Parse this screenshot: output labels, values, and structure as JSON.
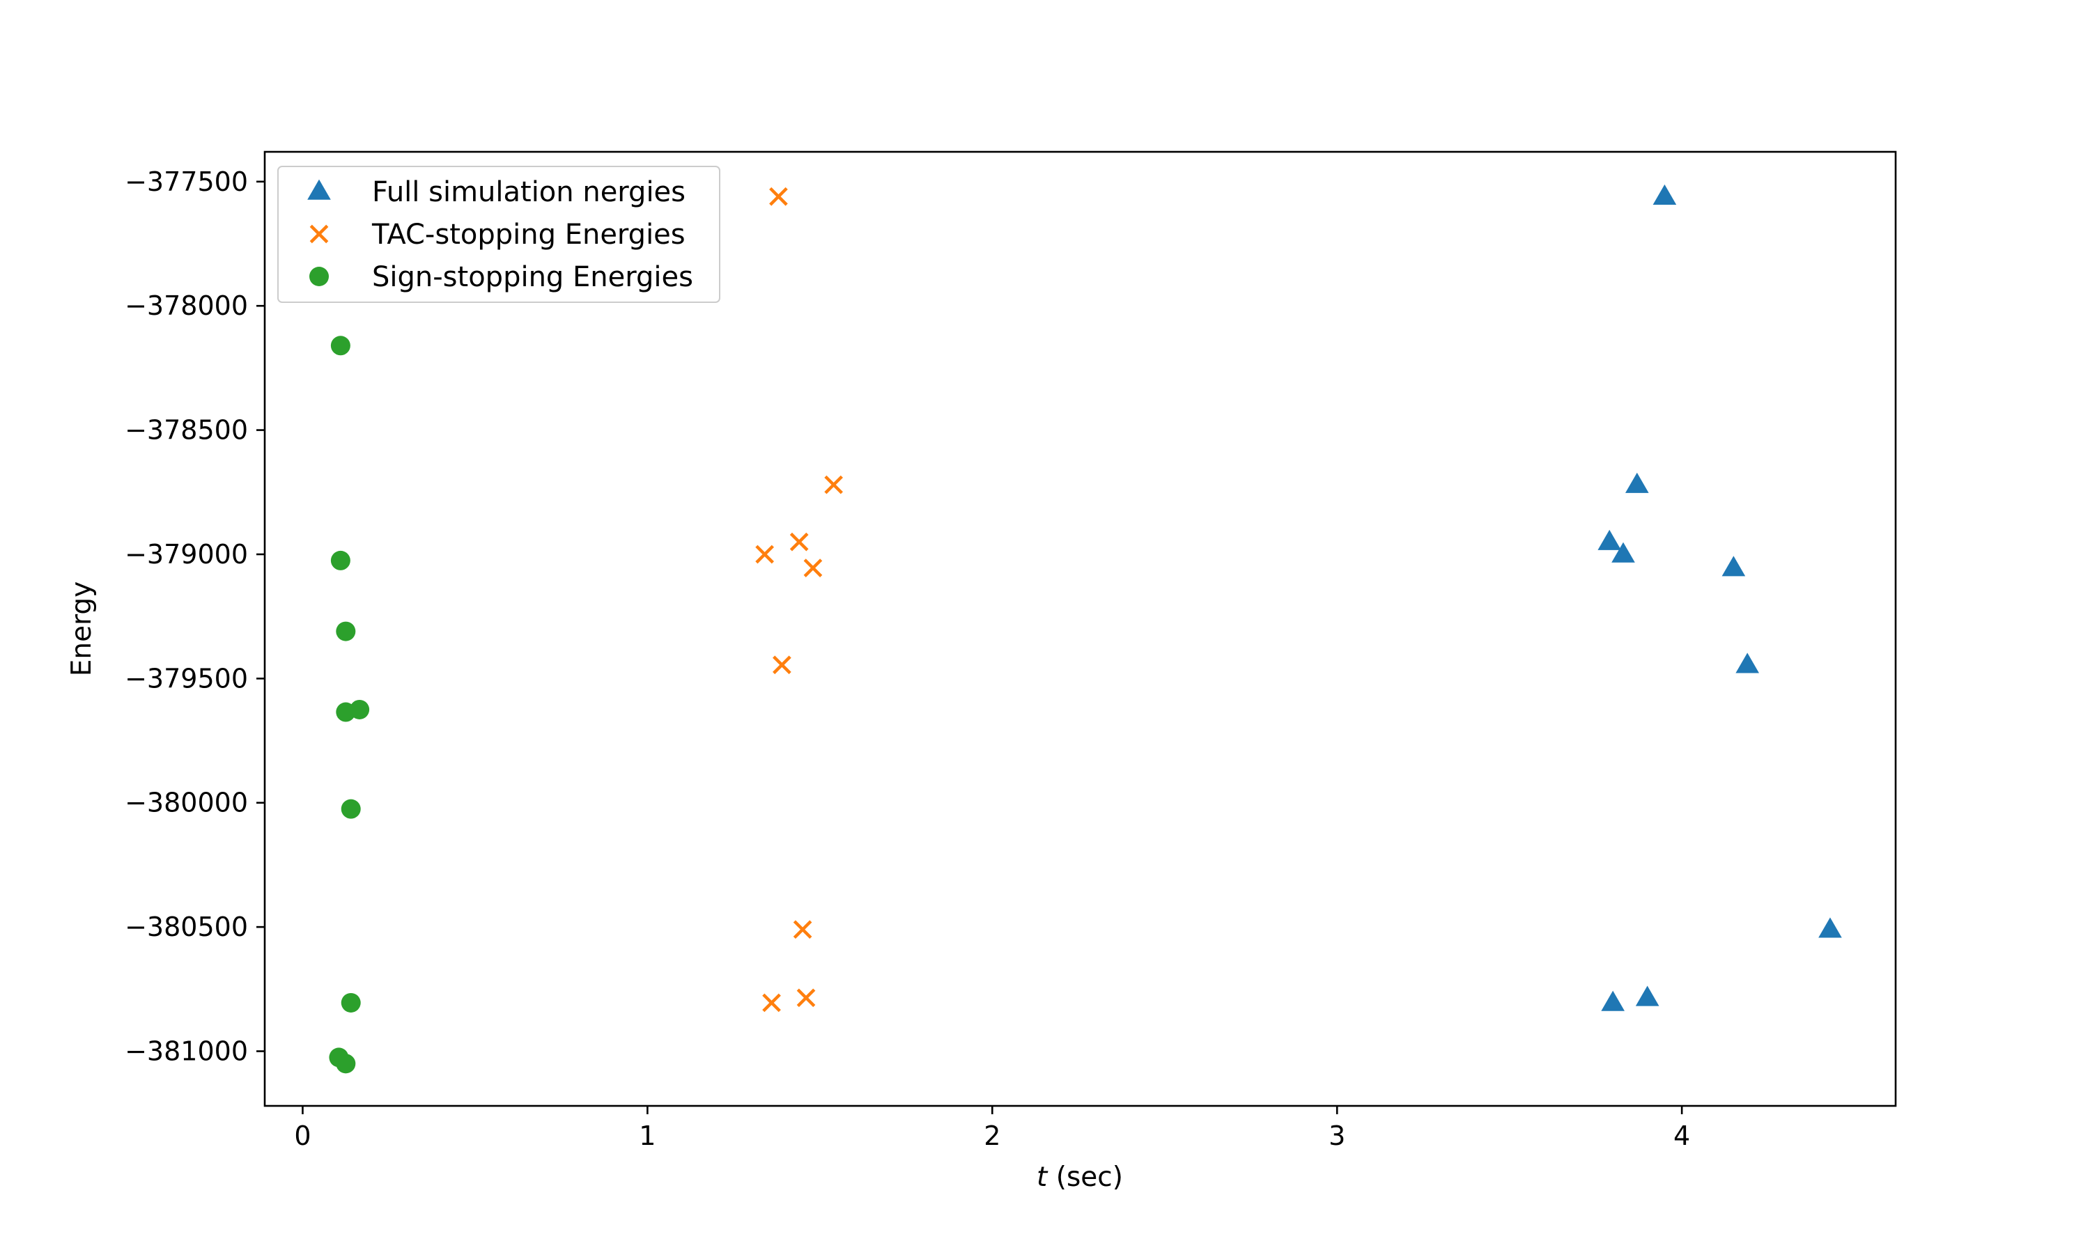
{
  "chart_data": {
    "type": "scatter",
    "title": "",
    "xlabel_var": "t",
    "xlabel_unit": "(sec)",
    "ylabel": "Energy",
    "xlim": [
      -0.11,
      4.62
    ],
    "ylim": [
      -381220,
      -377380
    ],
    "xticks": [
      0,
      1,
      2,
      3,
      4
    ],
    "yticks": [
      -377500,
      -378000,
      -378500,
      -379000,
      -379500,
      -380000,
      -380500,
      -381000
    ],
    "x_tick_labels": [
      "0",
      "1",
      "2",
      "3",
      "4"
    ],
    "y_tick_labels": [
      "−377500",
      "−378000",
      "−378500",
      "−379000",
      "−379500",
      "−380000",
      "−380500",
      "−381000"
    ],
    "grid": false,
    "legend_position": "top-left",
    "series": [
      {
        "name": "Full simulation nergies",
        "marker": "triangle",
        "color": "#1f77b4",
        "points": [
          [
            3.95,
            -377560
          ],
          [
            3.87,
            -378720
          ],
          [
            3.79,
            -378950
          ],
          [
            3.83,
            -379000
          ],
          [
            4.15,
            -379055
          ],
          [
            4.19,
            -379445
          ],
          [
            4.43,
            -380510
          ],
          [
            3.8,
            -380805
          ],
          [
            3.9,
            -380785
          ]
        ]
      },
      {
        "name": "TAC-stopping Energies",
        "marker": "x",
        "color": "#ff7f0e",
        "points": [
          [
            1.38,
            -377560
          ],
          [
            1.54,
            -378720
          ],
          [
            1.44,
            -378950
          ],
          [
            1.34,
            -379000
          ],
          [
            1.48,
            -379055
          ],
          [
            1.39,
            -379445
          ],
          [
            1.45,
            -380510
          ],
          [
            1.36,
            -380805
          ],
          [
            1.46,
            -380785
          ]
        ]
      },
      {
        "name": "Sign-stopping Energies",
        "marker": "circle",
        "color": "#2ca02c",
        "points": [
          [
            0.11,
            -378160
          ],
          [
            0.11,
            -379025
          ],
          [
            0.125,
            -379310
          ],
          [
            0.125,
            -379635
          ],
          [
            0.165,
            -379625
          ],
          [
            0.14,
            -380025
          ],
          [
            0.14,
            -380805
          ],
          [
            0.105,
            -381025
          ],
          [
            0.125,
            -381050
          ]
        ]
      }
    ]
  }
}
